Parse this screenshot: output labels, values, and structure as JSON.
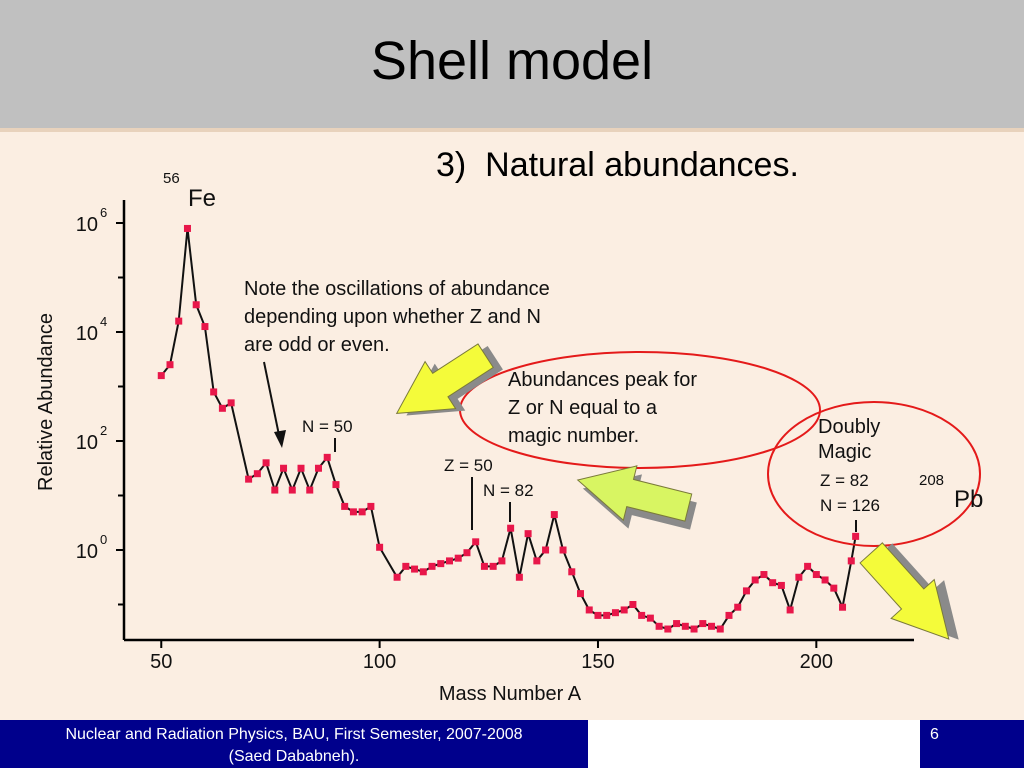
{
  "slide": {
    "title": "Shell model",
    "subtitle_number": "3)",
    "subtitle_text": "Natural abundances."
  },
  "footer": {
    "course_line1": "Nuclear and Radiation Physics, BAU, First Semester, 2007-2008",
    "course_line2": "(Saed Dababneh).",
    "page_number": "6"
  },
  "colors": {
    "header_bg": "#c0c0c0",
    "content_bg": "#fbeee2",
    "footer_bg": "#00008c",
    "marker": "#e8174a",
    "ellipse": "#e41a1a",
    "arrow_fill": "#f4fb3a",
    "arrow_fill_light": "#d8f562",
    "arrow_shadow": "#8a8a8a"
  },
  "chart_data": {
    "type": "line",
    "xlabel": "Mass Number A",
    "ylabel": "Relative Abundance",
    "xlim": [
      45,
      225
    ],
    "ylim_log10": [
      -1.8,
      6.3
    ],
    "y_scale": "log",
    "x_ticks": [
      {
        "value": 50,
        "label": "50"
      },
      {
        "value": 100,
        "label": "100"
      },
      {
        "value": 150,
        "label": "150"
      },
      {
        "value": 200,
        "label": "200"
      }
    ],
    "y_ticks": [
      {
        "exp": 6,
        "base": "10",
        "sup": "6"
      },
      {
        "exp": 4,
        "base": "10",
        "sup": "4"
      },
      {
        "exp": 2,
        "base": "10",
        "sup": "2"
      },
      {
        "exp": 0,
        "base": "10",
        "sup": "0"
      }
    ],
    "y_minor_exps": [
      5,
      3,
      1,
      -1
    ],
    "series": [
      {
        "marker": "square",
        "x": [
          50,
          52,
          54,
          56,
          58,
          60,
          62,
          64,
          66,
          70,
          72,
          74,
          76,
          78,
          80,
          82,
          84,
          86,
          88,
          90,
          92,
          94,
          96,
          98,
          100,
          104,
          106,
          108,
          110,
          112,
          114,
          116,
          118,
          120,
          122,
          124,
          126,
          128,
          130,
          132,
          134,
          136,
          138,
          140,
          142,
          144,
          146,
          148,
          150,
          152,
          154,
          156,
          158,
          160,
          162,
          164,
          166,
          168,
          170,
          172,
          174,
          176,
          178,
          180,
          182,
          184,
          186,
          188,
          190,
          192,
          194,
          196,
          198,
          200,
          202,
          204,
          206,
          208,
          209
        ],
        "log10_y": [
          3.2,
          3.4,
          4.2,
          5.9,
          4.5,
          4.1,
          2.9,
          2.6,
          2.7,
          1.3,
          1.4,
          1.6,
          1.1,
          1.5,
          1.1,
          1.5,
          1.1,
          1.5,
          1.7,
          1.2,
          0.8,
          0.7,
          0.7,
          0.8,
          0.05,
          -0.5,
          -0.3,
          -0.35,
          -0.4,
          -0.3,
          -0.25,
          -0.2,
          -0.15,
          -0.05,
          0.15,
          -0.3,
          -0.3,
          -0.2,
          0.4,
          -0.5,
          0.3,
          -0.2,
          0.0,
          0.65,
          0.0,
          -0.4,
          -0.8,
          -1.1,
          -1.2,
          -1.2,
          -1.15,
          -1.1,
          -1.0,
          -1.2,
          -1.25,
          -1.4,
          -1.45,
          -1.35,
          -1.4,
          -1.45,
          -1.35,
          -1.4,
          -1.45,
          -1.2,
          -1.05,
          -0.75,
          -0.55,
          -0.45,
          -0.6,
          -0.65,
          -1.1,
          -0.5,
          -0.3,
          -0.45,
          -0.55,
          -0.7,
          -1.05,
          -0.2,
          0.25
        ]
      }
    ],
    "annotations": [
      {
        "id": "fe",
        "mass": "56",
        "symbol": "Fe"
      },
      {
        "id": "note",
        "lines": [
          "Note the oscillations of abundance",
          "depending upon whether Z and N",
          "are odd or even."
        ]
      },
      {
        "id": "n50",
        "text": "N = 50"
      },
      {
        "id": "z50",
        "text": "Z = 50"
      },
      {
        "id": "n82",
        "text": "N = 82"
      },
      {
        "id": "peak",
        "lines": [
          "Abundances peak for",
          "Z or N equal to a",
          "magic number."
        ]
      },
      {
        "id": "doubly",
        "lines": [
          "Doubly",
          "Magic"
        ]
      },
      {
        "id": "z82",
        "text": "Z = 82"
      },
      {
        "id": "n126",
        "text": "N = 126"
      },
      {
        "id": "pb",
        "mass": "208",
        "symbol": "Pb"
      }
    ]
  }
}
